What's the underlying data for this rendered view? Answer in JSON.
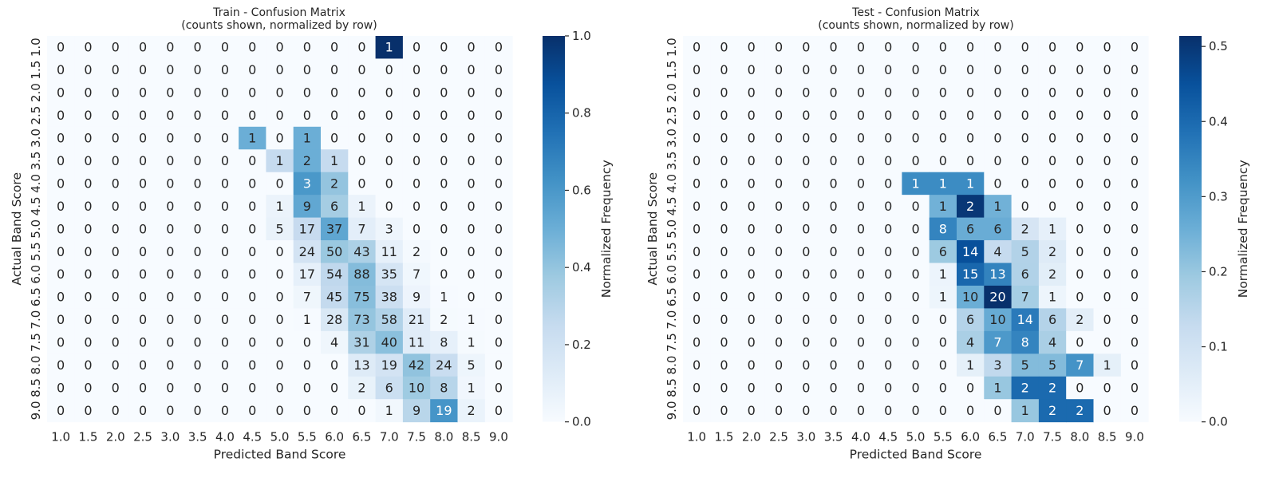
{
  "chart_data": [
    {
      "type": "heatmap",
      "title": "Train - Confusion Matrix",
      "subtitle": "(counts shown, normalized by row)",
      "xlabel": "Predicted Band Score",
      "ylabel": "Actual Band Score",
      "x_categories": [
        "1.0",
        "1.5",
        "2.0",
        "2.5",
        "3.0",
        "3.5",
        "4.0",
        "4.5",
        "5.0",
        "5.5",
        "6.0",
        "6.5",
        "7.0",
        "7.5",
        "8.0",
        "8.5",
        "9.0"
      ],
      "y_categories": [
        "1.0",
        "1.5",
        "2.0",
        "2.5",
        "3.0",
        "3.5",
        "4.0",
        "4.5",
        "5.0",
        "5.5",
        "6.0",
        "6.5",
        "7.0",
        "7.5",
        "8.0",
        "8.5",
        "9.0"
      ],
      "values": [
        [
          0,
          0,
          0,
          0,
          0,
          0,
          0,
          0,
          0,
          0,
          0,
          0,
          1,
          0,
          0,
          0,
          0
        ],
        [
          0,
          0,
          0,
          0,
          0,
          0,
          0,
          0,
          0,
          0,
          0,
          0,
          0,
          0,
          0,
          0,
          0
        ],
        [
          0,
          0,
          0,
          0,
          0,
          0,
          0,
          0,
          0,
          0,
          0,
          0,
          0,
          0,
          0,
          0,
          0
        ],
        [
          0,
          0,
          0,
          0,
          0,
          0,
          0,
          0,
          0,
          0,
          0,
          0,
          0,
          0,
          0,
          0,
          0
        ],
        [
          0,
          0,
          0,
          0,
          0,
          0,
          0,
          1,
          0,
          1,
          0,
          0,
          0,
          0,
          0,
          0,
          0
        ],
        [
          0,
          0,
          0,
          0,
          0,
          0,
          0,
          0,
          1,
          2,
          1,
          0,
          0,
          0,
          0,
          0,
          0
        ],
        [
          0,
          0,
          0,
          0,
          0,
          0,
          0,
          0,
          0,
          3,
          2,
          0,
          0,
          0,
          0,
          0,
          0
        ],
        [
          0,
          0,
          0,
          0,
          0,
          0,
          0,
          0,
          1,
          9,
          6,
          1,
          0,
          0,
          0,
          0,
          0
        ],
        [
          0,
          0,
          0,
          0,
          0,
          0,
          0,
          0,
          5,
          17,
          37,
          7,
          3,
          0,
          0,
          0,
          0
        ],
        [
          0,
          0,
          0,
          0,
          0,
          0,
          0,
          0,
          0,
          24,
          50,
          43,
          11,
          2,
          0,
          0,
          0
        ],
        [
          0,
          0,
          0,
          0,
          0,
          0,
          0,
          0,
          0,
          17,
          54,
          88,
          35,
          7,
          0,
          0,
          0
        ],
        [
          0,
          0,
          0,
          0,
          0,
          0,
          0,
          0,
          0,
          7,
          45,
          75,
          38,
          9,
          1,
          0,
          0
        ],
        [
          0,
          0,
          0,
          0,
          0,
          0,
          0,
          0,
          0,
          1,
          28,
          73,
          58,
          21,
          2,
          1,
          0
        ],
        [
          0,
          0,
          0,
          0,
          0,
          0,
          0,
          0,
          0,
          0,
          4,
          31,
          40,
          11,
          8,
          1,
          0
        ],
        [
          0,
          0,
          0,
          0,
          0,
          0,
          0,
          0,
          0,
          0,
          0,
          13,
          19,
          42,
          24,
          5,
          0
        ],
        [
          0,
          0,
          0,
          0,
          0,
          0,
          0,
          0,
          0,
          0,
          0,
          2,
          6,
          10,
          8,
          1,
          0
        ],
        [
          0,
          0,
          0,
          0,
          0,
          0,
          0,
          0,
          0,
          0,
          0,
          0,
          1,
          9,
          19,
          2,
          0
        ]
      ],
      "colorbar": {
        "label": "Normalized Frequency",
        "range": [
          0,
          1.0
        ],
        "ticks": [
          "0.0",
          "0.2",
          "0.4",
          "0.6",
          "0.8",
          "1.0"
        ],
        "tick_values": [
          0,
          0.2,
          0.4,
          0.6,
          0.8,
          1.0
        ]
      },
      "colormap": "Blues"
    },
    {
      "type": "heatmap",
      "title": "Test - Confusion Matrix",
      "subtitle": "(counts shown, normalized by row)",
      "xlabel": "Predicted Band Score",
      "ylabel": "Actual Band Score",
      "x_categories": [
        "1.0",
        "1.5",
        "2.0",
        "2.5",
        "3.0",
        "3.5",
        "4.0",
        "4.5",
        "5.0",
        "5.5",
        "6.0",
        "6.5",
        "7.0",
        "7.5",
        "8.0",
        "8.5",
        "9.0"
      ],
      "y_categories": [
        "1.0",
        "1.5",
        "2.0",
        "2.5",
        "3.0",
        "3.5",
        "4.0",
        "4.5",
        "5.0",
        "5.5",
        "6.0",
        "6.5",
        "7.0",
        "7.5",
        "8.0",
        "8.5",
        "9.0"
      ],
      "values": [
        [
          0,
          0,
          0,
          0,
          0,
          0,
          0,
          0,
          0,
          0,
          0,
          0,
          0,
          0,
          0,
          0,
          0
        ],
        [
          0,
          0,
          0,
          0,
          0,
          0,
          0,
          0,
          0,
          0,
          0,
          0,
          0,
          0,
          0,
          0,
          0
        ],
        [
          0,
          0,
          0,
          0,
          0,
          0,
          0,
          0,
          0,
          0,
          0,
          0,
          0,
          0,
          0,
          0,
          0
        ],
        [
          0,
          0,
          0,
          0,
          0,
          0,
          0,
          0,
          0,
          0,
          0,
          0,
          0,
          0,
          0,
          0,
          0
        ],
        [
          0,
          0,
          0,
          0,
          0,
          0,
          0,
          0,
          0,
          0,
          0,
          0,
          0,
          0,
          0,
          0,
          0
        ],
        [
          0,
          0,
          0,
          0,
          0,
          0,
          0,
          0,
          0,
          0,
          0,
          0,
          0,
          0,
          0,
          0,
          0
        ],
        [
          0,
          0,
          0,
          0,
          0,
          0,
          0,
          0,
          1,
          1,
          1,
          0,
          0,
          0,
          0,
          0,
          0
        ],
        [
          0,
          0,
          0,
          0,
          0,
          0,
          0,
          0,
          0,
          1,
          2,
          1,
          0,
          0,
          0,
          0,
          0
        ],
        [
          0,
          0,
          0,
          0,
          0,
          0,
          0,
          0,
          0,
          8,
          6,
          6,
          2,
          1,
          0,
          0,
          0
        ],
        [
          0,
          0,
          0,
          0,
          0,
          0,
          0,
          0,
          0,
          6,
          14,
          4,
          5,
          2,
          0,
          0,
          0
        ],
        [
          0,
          0,
          0,
          0,
          0,
          0,
          0,
          0,
          0,
          1,
          15,
          13,
          6,
          2,
          0,
          0,
          0
        ],
        [
          0,
          0,
          0,
          0,
          0,
          0,
          0,
          0,
          0,
          1,
          10,
          20,
          7,
          1,
          0,
          0,
          0
        ],
        [
          0,
          0,
          0,
          0,
          0,
          0,
          0,
          0,
          0,
          0,
          6,
          10,
          14,
          6,
          2,
          0,
          0
        ],
        [
          0,
          0,
          0,
          0,
          0,
          0,
          0,
          0,
          0,
          0,
          4,
          7,
          8,
          4,
          0,
          0,
          0
        ],
        [
          0,
          0,
          0,
          0,
          0,
          0,
          0,
          0,
          0,
          0,
          1,
          3,
          5,
          5,
          7,
          1,
          0
        ],
        [
          0,
          0,
          0,
          0,
          0,
          0,
          0,
          0,
          0,
          0,
          0,
          1,
          2,
          2,
          0,
          0,
          0
        ],
        [
          0,
          0,
          0,
          0,
          0,
          0,
          0,
          0,
          0,
          0,
          0,
          0,
          1,
          2,
          2,
          0,
          0
        ]
      ],
      "colorbar": {
        "label": "Normalized Frequency",
        "range": [
          0,
          0.514
        ],
        "ticks": [
          "0.0",
          "0.1",
          "0.2",
          "0.3",
          "0.4",
          "0.5"
        ],
        "tick_values": [
          0,
          0.1,
          0.2,
          0.3,
          0.4,
          0.5
        ]
      },
      "colormap": "Blues"
    }
  ]
}
